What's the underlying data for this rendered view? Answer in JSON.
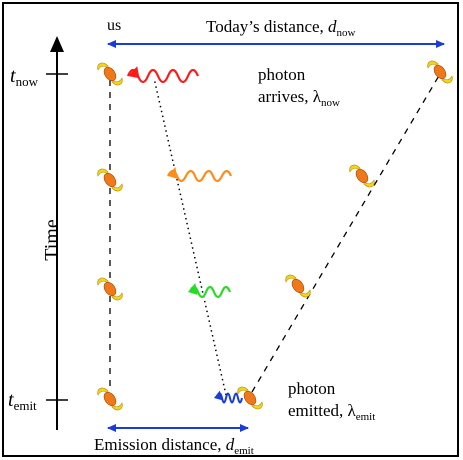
{
  "labels": {
    "us": "us",
    "today_distance": "Today’s distance, ",
    "today_distance_var": "d",
    "today_distance_sub": "now",
    "t_now_var": "t",
    "t_now_sub": "now",
    "t_emit_var": "t",
    "t_emit_sub": "emit",
    "time_axis": "Time",
    "photon_arrives_line1": "photon",
    "photon_arrives_line2": "arrives, ",
    "lambda_now_sym": "λ",
    "lambda_now_sub": "now",
    "photon_emitted_line1": "photon",
    "photon_emitted_line2": "emitted, ",
    "lambda_emit_sym": "λ",
    "lambda_emit_sub": "emit",
    "emission_distance": "Emission distance, ",
    "emission_distance_var": "d",
    "emission_distance_sub": "emit"
  },
  "colors": {
    "distance_arrows": "#1a3cd9",
    "photon_now": "#ff1a1a",
    "photon_mid_upper": "#ff8c1a",
    "photon_mid_lower": "#22dd22",
    "photon_emit": "#1a3cd9",
    "galaxy_core": "#f07818",
    "galaxy_arms": "#f5d31a"
  },
  "icons": [
    "galaxy-icon",
    "photon-wave-icon",
    "time-arrow-icon"
  ]
}
